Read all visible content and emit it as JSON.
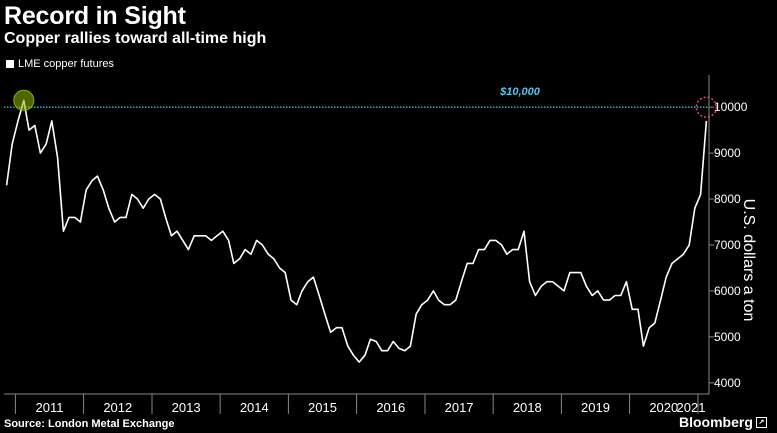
{
  "title": "Record in Sight",
  "subtitle": "Copper rallies toward all-time high",
  "legend": "LME copper futures",
  "source": "Source: London Metal Exchange",
  "brand": "Bloomberg",
  "colors": {
    "line": "#ffffff",
    "reference": "#4cc9f0",
    "record_marker": "#8db600",
    "target_marker": "#e0457b",
    "background": "#000000"
  },
  "chart_data": {
    "type": "line",
    "title": "Record in Sight",
    "subtitle": "Copper rallies toward all-time high",
    "xlabel": "",
    "ylabel": "U.S. dollars a ton",
    "x_tick_labels": [
      "2011",
      "2012",
      "2013",
      "2014",
      "2015",
      "2016",
      "2017",
      "2018",
      "2019",
      "2020",
      "2021"
    ],
    "y_ticks": [
      4000,
      5000,
      6000,
      7000,
      8000,
      9000,
      10000
    ],
    "ylim": [
      3800,
      10700
    ],
    "xlim": [
      "2010-11-01",
      "2021-03-01"
    ],
    "grid": false,
    "reference_line": {
      "value": 10000,
      "label": "$10,000"
    },
    "series": [
      {
        "name": "LME copper futures",
        "x": [
          "2010-11",
          "2010-12",
          "2011-01",
          "2011-02",
          "2011-03",
          "2011-04",
          "2011-05",
          "2011-06",
          "2011-07",
          "2011-08",
          "2011-09",
          "2011-10",
          "2011-11",
          "2011-12",
          "2012-01",
          "2012-02",
          "2012-03",
          "2012-04",
          "2012-05",
          "2012-06",
          "2012-07",
          "2012-08",
          "2012-09",
          "2012-10",
          "2012-11",
          "2012-12",
          "2013-01",
          "2013-02",
          "2013-03",
          "2013-04",
          "2013-05",
          "2013-06",
          "2013-07",
          "2013-08",
          "2013-09",
          "2013-10",
          "2013-11",
          "2013-12",
          "2014-01",
          "2014-02",
          "2014-03",
          "2014-04",
          "2014-05",
          "2014-06",
          "2014-07",
          "2014-08",
          "2014-09",
          "2014-10",
          "2014-11",
          "2014-12",
          "2015-01",
          "2015-02",
          "2015-03",
          "2015-04",
          "2015-05",
          "2015-06",
          "2015-07",
          "2015-08",
          "2015-09",
          "2015-10",
          "2015-11",
          "2015-12",
          "2016-01",
          "2016-02",
          "2016-03",
          "2016-04",
          "2016-05",
          "2016-06",
          "2016-07",
          "2016-08",
          "2016-09",
          "2016-10",
          "2016-11",
          "2016-12",
          "2017-01",
          "2017-02",
          "2017-03",
          "2017-04",
          "2017-05",
          "2017-06",
          "2017-07",
          "2017-08",
          "2017-09",
          "2017-10",
          "2017-11",
          "2017-12",
          "2018-01",
          "2018-02",
          "2018-03",
          "2018-04",
          "2018-05",
          "2018-06",
          "2018-07",
          "2018-08",
          "2018-09",
          "2018-10",
          "2018-11",
          "2018-12",
          "2019-01",
          "2019-02",
          "2019-03",
          "2019-04",
          "2019-05",
          "2019-06",
          "2019-07",
          "2019-08",
          "2019-09",
          "2019-10",
          "2019-11",
          "2019-12",
          "2020-01",
          "2020-02",
          "2020-03",
          "2020-04",
          "2020-05",
          "2020-06",
          "2020-07",
          "2020-08",
          "2020-09",
          "2020-10",
          "2020-11",
          "2020-12",
          "2021-01",
          "2021-02"
        ],
        "y": [
          8300,
          9200,
          9700,
          10150,
          9500,
          9600,
          9000,
          9200,
          9700,
          8900,
          7300,
          7600,
          7600,
          7500,
          8200,
          8400,
          8500,
          8200,
          7800,
          7500,
          7600,
          7600,
          8100,
          8000,
          7800,
          8000,
          8100,
          8000,
          7600,
          7200,
          7300,
          7100,
          6900,
          7200,
          7200,
          7200,
          7100,
          7200,
          7300,
          7100,
          6600,
          6700,
          6900,
          6800,
          7100,
          7000,
          6800,
          6700,
          6500,
          6400,
          5800,
          5700,
          6000,
          6200,
          6300,
          5900,
          5500,
          5100,
          5200,
          5200,
          4800,
          4600,
          4450,
          4600,
          4950,
          4900,
          4700,
          4700,
          4900,
          4750,
          4700,
          4800,
          5500,
          5700,
          5800,
          6000,
          5800,
          5700,
          5700,
          5800,
          6200,
          6600,
          6600,
          6900,
          6900,
          7100,
          7100,
          7000,
          6800,
          6900,
          6900,
          7300,
          6200,
          5900,
          6100,
          6200,
          6200,
          6100,
          6000,
          6400,
          6400,
          6400,
          6100,
          5900,
          6000,
          5800,
          5800,
          5900,
          5900,
          6200,
          5600,
          5600,
          4800,
          5200,
          5300,
          5800,
          6300,
          6600,
          6700,
          6800,
          7000,
          7800,
          8100,
          9700
        ]
      }
    ]
  }
}
